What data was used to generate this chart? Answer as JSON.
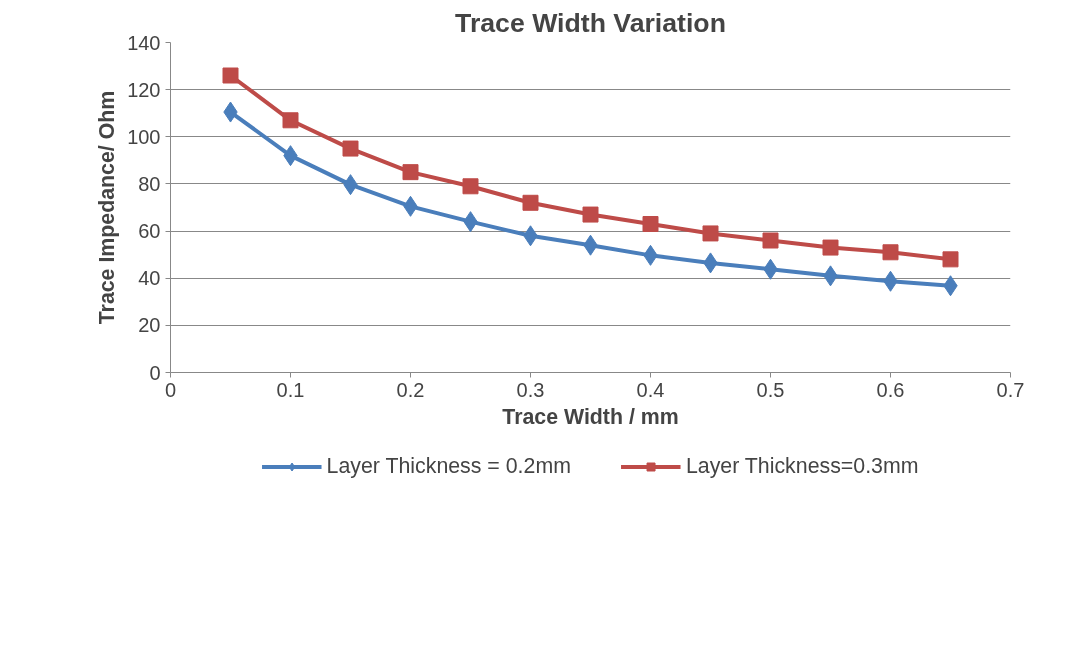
{
  "chart_data": {
    "type": "line",
    "title": "Trace Width Variation",
    "xlabel": "Trace Width / mm",
    "ylabel": "Trace Impedance/ Ohm",
    "x": [
      0.05,
      0.1,
      0.15,
      0.2,
      0.25,
      0.3,
      0.35,
      0.4,
      0.45,
      0.5,
      0.55,
      0.6,
      0.65
    ],
    "series": [
      {
        "name": "Layer Thickness = 0.2mm",
        "color": "#4a7ebb",
        "marker": "diamond",
        "values": [
          110.5,
          92,
          79.7,
          70.5,
          64,
          58,
          54,
          49.7,
          46.5,
          43.8,
          41,
          38.7,
          36.8
        ]
      },
      {
        "name": "Layer Thickness=0.3mm",
        "color": "#be4b48",
        "marker": "square",
        "values": [
          126,
          107,
          95,
          85,
          79,
          72,
          67,
          63,
          59,
          56,
          53,
          51,
          48
        ]
      }
    ],
    "xlim": [
      0,
      0.7
    ],
    "xticks": [
      0,
      0.1,
      0.2,
      0.3,
      0.4,
      0.5,
      0.6,
      0.7
    ],
    "ylim": [
      0,
      140
    ],
    "yticks": [
      0,
      20,
      40,
      60,
      80,
      100,
      120,
      140
    ],
    "grid": "y",
    "legend": "bottom",
    "line_style": "solid"
  }
}
